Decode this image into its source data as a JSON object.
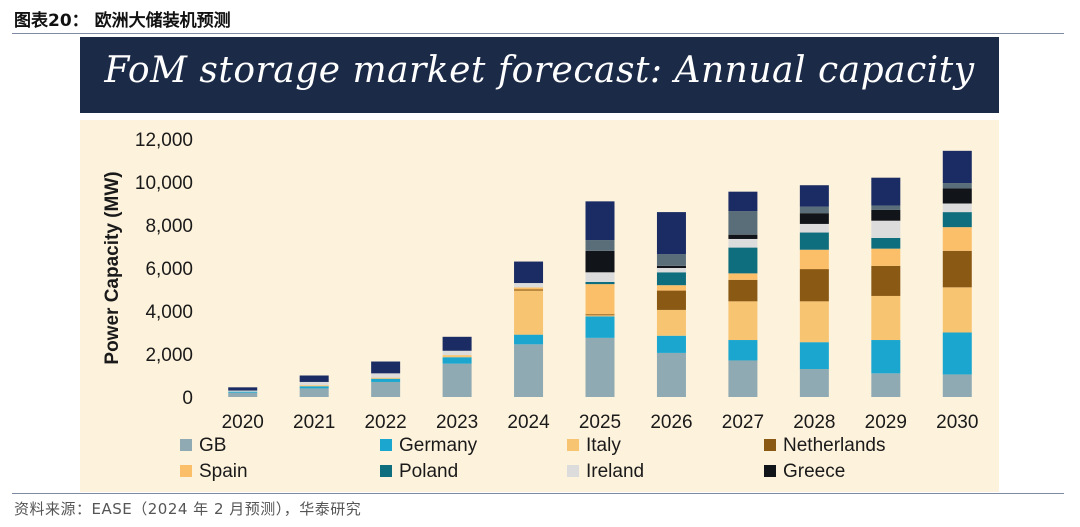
{
  "figure_caption": "图表20： 欧洲大储装机预测",
  "source_note": "资料来源：EASE（2024 年 2 月预测），华泰研究",
  "chart_data": {
    "type": "bar",
    "stacked": true,
    "title": "FoM storage market forecast: Annual capacity",
    "xlabel": "",
    "ylabel": "Power Capacity (MW)",
    "ylim": [
      0,
      12000
    ],
    "yticks": [
      0,
      2000,
      4000,
      6000,
      8000,
      10000,
      12000
    ],
    "ytick_labels": [
      "0",
      "2,000",
      "4,000",
      "6,000",
      "8,000",
      "10,000",
      "12,000"
    ],
    "grid": true,
    "legend_position": "bottom",
    "categories": [
      "2020",
      "2021",
      "2022",
      "2023",
      "2024",
      "2025",
      "2026",
      "2027",
      "2028",
      "2029",
      "2030"
    ],
    "series": [
      {
        "name": "GB",
        "color": "#8faab2",
        "values": [
          200,
          400,
          700,
          1550,
          2450,
          2750,
          2050,
          1700,
          1300,
          1100,
          1050
        ]
      },
      {
        "name": "Germany",
        "color": "#1aa6cf",
        "values": [
          50,
          100,
          150,
          300,
          450,
          1000,
          800,
          950,
          1250,
          1550,
          1950
        ]
      },
      {
        "name": "Italy",
        "color": "#f7c471",
        "values": [
          0,
          50,
          50,
          100,
          2050,
          50,
          1200,
          1800,
          1900,
          2050,
          2100
        ]
      },
      {
        "name": "Netherlands",
        "color": "#8a5a14",
        "values": [
          0,
          0,
          0,
          0,
          50,
          50,
          900,
          1000,
          1500,
          1400,
          1700
        ]
      },
      {
        "name": "Spain",
        "color": "#fbbf6a",
        "values": [
          0,
          0,
          0,
          0,
          100,
          1400,
          250,
          300,
          900,
          800,
          1100
        ]
      },
      {
        "name": "Poland",
        "color": "#0f6e7e",
        "values": [
          0,
          0,
          0,
          0,
          0,
          100,
          600,
          1200,
          800,
          500,
          700
        ]
      },
      {
        "name": "Ireland",
        "color": "#dcdcdc",
        "values": [
          50,
          150,
          200,
          200,
          200,
          450,
          200,
          400,
          400,
          800,
          400
        ]
      },
      {
        "name": "Greece",
        "color": "#111419",
        "values": [
          0,
          0,
          0,
          0,
          0,
          1000,
          100,
          200,
          500,
          500,
          700
        ]
      },
      {
        "name": "",
        "color": "#5a6e7a",
        "values": [
          0,
          0,
          0,
          0,
          0,
          500,
          550,
          1100,
          300,
          200,
          250
        ]
      },
      {
        "name": "",
        "color": "#1a2c63",
        "values": [
          150,
          300,
          550,
          650,
          1000,
          1800,
          1950,
          900,
          1000,
          1300,
          1500
        ]
      }
    ]
  }
}
